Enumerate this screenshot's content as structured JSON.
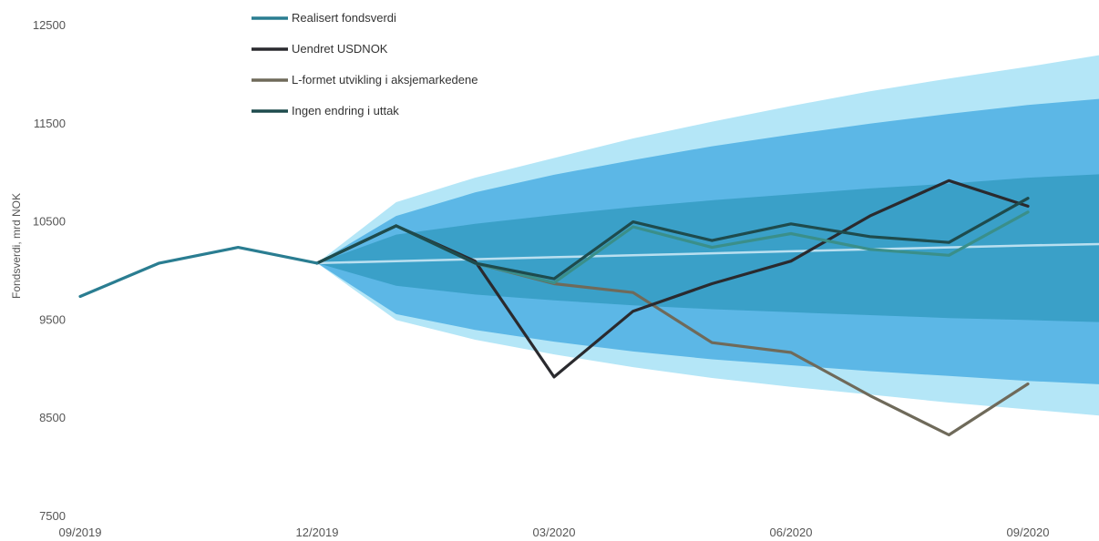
{
  "chart_data": {
    "type": "line",
    "title": "",
    "ylabel": "Fondsverdi, mrd NOK",
    "xlabel": "",
    "ylim": [
      7500,
      12500
    ],
    "yticks": [
      7500,
      8500,
      9500,
      10500,
      11500,
      12500
    ],
    "xticks": [
      {
        "x": 0,
        "label": "09/2019"
      },
      {
        "x": 3,
        "label": "12/2019"
      },
      {
        "x": 6,
        "label": "03/2020"
      },
      {
        "x": 9,
        "label": "06/2020"
      },
      {
        "x": 12,
        "label": "09/2020"
      }
    ],
    "xlim": [
      0,
      13.3
    ],
    "grid": false,
    "legend_position": "top-center",
    "fan": {
      "x": [
        3,
        4,
        5,
        6,
        7,
        8,
        9,
        10,
        11,
        12,
        13.3
      ],
      "median": [
        10080,
        10100,
        10120,
        10140,
        10160,
        10180,
        10200,
        10220,
        10240,
        10260,
        10280
      ],
      "bands": [
        {
          "lower": [
            10080,
            9500,
            9300,
            9150,
            9020,
            8910,
            8820,
            8740,
            8660,
            8590,
            8500
          ],
          "upper": [
            10080,
            10700,
            10950,
            11150,
            11350,
            11520,
            11680,
            11830,
            11960,
            12080,
            12250
          ],
          "color": "#b4e6f7"
        },
        {
          "lower": [
            10080,
            9560,
            9400,
            9280,
            9180,
            9100,
            9040,
            8980,
            8930,
            8880,
            8830
          ],
          "upper": [
            10080,
            10560,
            10800,
            10980,
            11130,
            11270,
            11390,
            11500,
            11600,
            11690,
            11780
          ],
          "color": "#5cb7e6"
        },
        {
          "lower": [
            10080,
            9850,
            9760,
            9700,
            9650,
            9610,
            9580,
            9550,
            9520,
            9500,
            9470
          ],
          "upper": [
            10080,
            10370,
            10480,
            10570,
            10650,
            10720,
            10780,
            10840,
            10890,
            10950,
            11000
          ],
          "color": "#3aa0c8"
        }
      ],
      "median_color": "#b9dff0"
    },
    "series": [
      {
        "name": "Realisert fondsverdi",
        "color": "#2a7d91",
        "x": [
          0,
          1,
          2,
          3
        ],
        "y": [
          9740,
          10080,
          10240,
          10080
        ]
      },
      {
        "name": "Uendret USDNOK",
        "color": "#2a2a2e",
        "x": [
          3,
          4,
          5,
          6,
          7,
          8,
          9,
          10,
          11,
          12
        ],
        "y": [
          10080,
          10460,
          10100,
          8920,
          9590,
          9870,
          10100,
          10560,
          10920,
          10660
        ]
      },
      {
        "name": "L-formet utvikling i aksjemarkedene",
        "color": "#6f6a5a",
        "x": [
          3,
          4,
          5,
          6,
          7,
          8,
          9,
          10,
          11,
          12
        ],
        "y": [
          10080,
          10460,
          10080,
          9870,
          9780,
          9270,
          9170,
          8730,
          8330,
          8850
        ]
      },
      {
        "name": "Ingen endring i uttak",
        "color": "#1e4b4d",
        "x": [
          3,
          4,
          5,
          6,
          7,
          8,
          9,
          10,
          11,
          12
        ],
        "y": [
          10080,
          10460,
          10080,
          9920,
          10500,
          10310,
          10480,
          10350,
          10290,
          10740
        ]
      },
      {
        "name": "",
        "color": "#3a8f8a",
        "x": [
          3,
          4,
          5,
          6,
          7,
          8,
          9,
          10,
          11,
          12
        ],
        "y": [
          10080,
          10460,
          10080,
          9880,
          10450,
          10240,
          10380,
          10220,
          10160,
          10600
        ]
      }
    ]
  }
}
